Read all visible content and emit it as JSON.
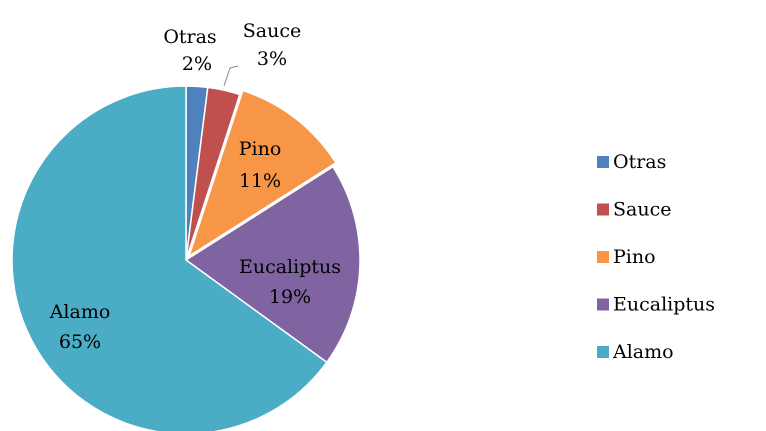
{
  "chart_data": {
    "type": "pie",
    "categories": [
      "Otras",
      "Sauce",
      "Pino",
      "Eucaliptus",
      "Alamo"
    ],
    "values": [
      2,
      3,
      11,
      19,
      65
    ],
    "value_labels": [
      "2%",
      "3%",
      "11%",
      "19%",
      "65%"
    ],
    "colors": [
      "#4f81bd",
      "#c0504d",
      "#f79646",
      "#8064a2",
      "#4bacc6"
    ],
    "legend": "right"
  }
}
